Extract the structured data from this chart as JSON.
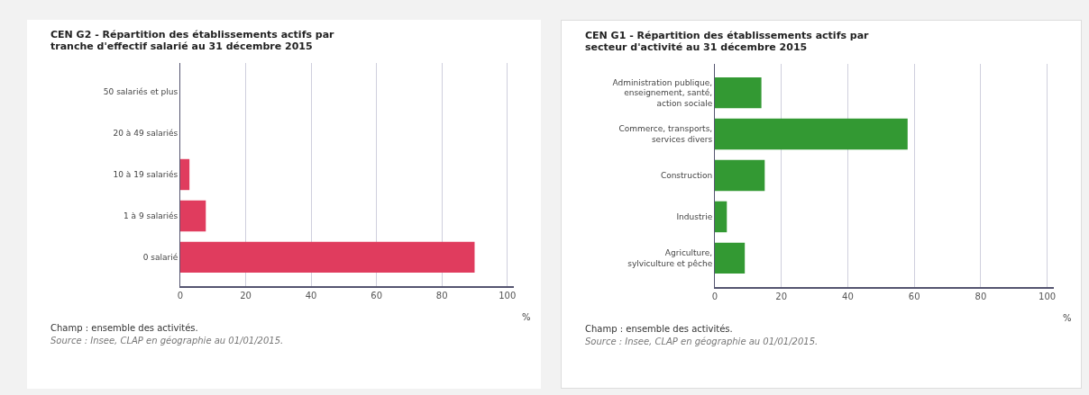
{
  "chart_data": [
    {
      "type": "bar",
      "orientation": "horizontal",
      "title": "CEN G2 - Répartition des établissements actifs par tranche d'effectif salarié au 31 décembre 2015",
      "categories": [
        "50 salariés et plus",
        "20 à 49 salariés",
        "10 à 19 salariés",
        "1 à 9 salariés",
        "0 salarié"
      ],
      "values": [
        0,
        0,
        2.8,
        7.8,
        90
      ],
      "color": "#e03c5e",
      "xlim": [
        0,
        102
      ],
      "xticks": [
        0,
        20,
        40,
        60,
        80,
        100
      ],
      "xlabel": "%",
      "grid": "x",
      "annotations": [
        "Champ : ensemble des activités.",
        "Source : Insee, CLAP en géographie au 01/01/2015."
      ]
    },
    {
      "type": "bar",
      "orientation": "horizontal",
      "title": "CEN G1 - Répartition des établissements actifs par secteur d'activité au 31 décembre 2015",
      "categories": [
        "Administration publique, enseignement, santé, action sociale",
        "Commerce, transports, services divers",
        "Construction",
        "Industrie",
        "Agriculture, sylviculture et pêche"
      ],
      "values": [
        14,
        58,
        15,
        3.6,
        9
      ],
      "color": "#339933",
      "xlim": [
        0,
        102
      ],
      "xticks": [
        0,
        20,
        40,
        60,
        80,
        100
      ],
      "xlabel": "%",
      "grid": "x",
      "annotations": [
        "Champ : ensemble des activités.",
        "Source : Insee, CLAP en géographie au 01/01/2015."
      ]
    }
  ]
}
